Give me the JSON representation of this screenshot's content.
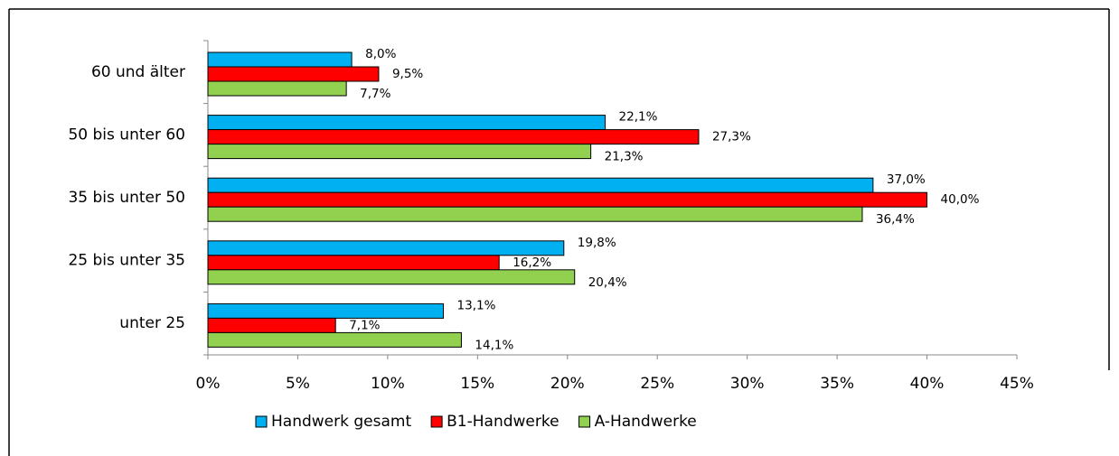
{
  "chart_data": {
    "type": "bar",
    "orientation": "horizontal",
    "categories": [
      "60 und älter",
      "50 bis unter 60",
      "35 bis unter 50",
      "25 bis unter 35",
      "unter 25"
    ],
    "series": [
      {
        "name": "Handwerk gesamt",
        "color": "#00b0f0",
        "values": [
          8.0,
          22.1,
          37.0,
          19.8,
          13.1
        ],
        "value_labels": [
          "8,0%",
          "22,1%",
          "37,0%",
          "19,8%",
          "13,1%"
        ]
      },
      {
        "name": "B1-Handwerke",
        "color": "#ff0000",
        "values": [
          9.5,
          27.3,
          40.0,
          16.2,
          7.1
        ],
        "value_labels": [
          "9,5%",
          "27,3%",
          "40,0%",
          "16,2%",
          "7,1%"
        ]
      },
      {
        "name": "A-Handwerke",
        "color": "#92d050",
        "values": [
          7.7,
          21.3,
          36.4,
          20.4,
          14.1
        ],
        "value_labels": [
          "7,7%",
          "21,3%",
          "36,4%",
          "20,4%",
          "14,1%"
        ]
      }
    ],
    "xlim": [
      0,
      45
    ],
    "xticks": [
      {
        "value": 0,
        "label": "0%"
      },
      {
        "value": 5,
        "label": "5%"
      },
      {
        "value": 10,
        "label": "10%"
      },
      {
        "value": 15,
        "label": "15%"
      },
      {
        "value": 20,
        "label": "20%"
      },
      {
        "value": 25,
        "label": "25%"
      },
      {
        "value": 30,
        "label": "30%"
      },
      {
        "value": 35,
        "label": "35%"
      },
      {
        "value": 40,
        "label": "40%"
      },
      {
        "value": 45,
        "label": "45%"
      }
    ],
    "legend": "bottom"
  }
}
